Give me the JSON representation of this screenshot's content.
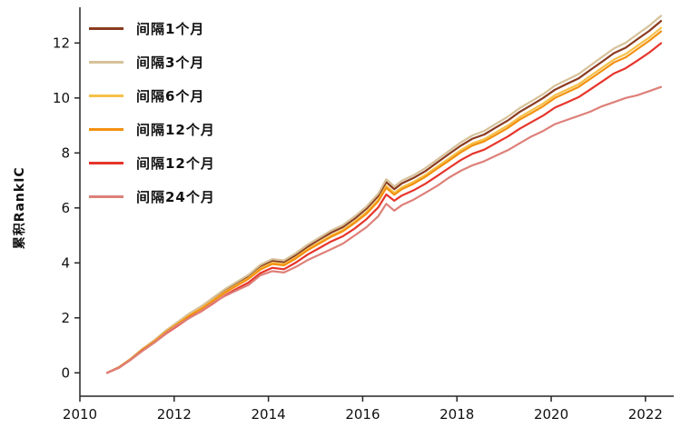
{
  "chart_data": {
    "type": "line",
    "title": "",
    "xlabel": "",
    "ylabel": "累积RankIC",
    "grid": false,
    "legend_position": "top-left",
    "xlim": [
      2010,
      2022.6
    ],
    "ylim": [
      -0.85,
      13.3
    ],
    "xticks": [
      2010,
      2012,
      2014,
      2016,
      2018,
      2020,
      2022
    ],
    "yticks": [
      0,
      2,
      4,
      6,
      8,
      10,
      12
    ],
    "x": [
      2010.58,
      2010.83,
      2011.08,
      2011.33,
      2011.58,
      2011.83,
      2012.08,
      2012.33,
      2012.58,
      2012.83,
      2013.08,
      2013.33,
      2013.58,
      2013.83,
      2014.08,
      2014.33,
      2014.58,
      2014.83,
      2015.08,
      2015.33,
      2015.58,
      2015.83,
      2016.08,
      2016.33,
      2016.5,
      2016.67,
      2016.83,
      2017.08,
      2017.33,
      2017.58,
      2017.83,
      2018.08,
      2018.33,
      2018.58,
      2018.83,
      2019.08,
      2019.33,
      2019.58,
      2019.83,
      2020.08,
      2020.33,
      2020.58,
      2020.83,
      2021.08,
      2021.33,
      2021.58,
      2021.83,
      2022.08,
      2022.33
    ],
    "series": [
      {
        "name": "间隔1个月",
        "color": "#8a3b20",
        "values": [
          0.0,
          0.2,
          0.51,
          0.87,
          1.17,
          1.53,
          1.84,
          2.14,
          2.4,
          2.7,
          3.01,
          3.26,
          3.52,
          3.88,
          4.08,
          4.03,
          4.28,
          4.59,
          4.85,
          5.1,
          5.3,
          5.61,
          5.97,
          6.43,
          6.94,
          6.68,
          6.89,
          7.09,
          7.34,
          7.65,
          7.96,
          8.26,
          8.52,
          8.67,
          8.93,
          9.18,
          9.49,
          9.74,
          10.0,
          10.3,
          10.51,
          10.71,
          11.02,
          11.32,
          11.63,
          11.83,
          12.14,
          12.44,
          12.8
        ]
      },
      {
        "name": "间隔3个月",
        "color": "#d6c29a",
        "values": [
          0.0,
          0.21,
          0.52,
          0.88,
          1.19,
          1.55,
          1.86,
          2.17,
          2.43,
          2.74,
          3.05,
          3.31,
          3.57,
          3.93,
          4.14,
          4.09,
          4.35,
          4.66,
          4.92,
          5.18,
          5.38,
          5.69,
          6.05,
          6.52,
          7.04,
          6.78,
          6.99,
          7.19,
          7.45,
          7.76,
          8.07,
          8.38,
          8.64,
          8.8,
          9.06,
          9.32,
          9.63,
          9.88,
          10.14,
          10.45,
          10.66,
          10.87,
          11.18,
          11.49,
          11.8,
          12.01,
          12.32,
          12.63,
          12.99
        ]
      },
      {
        "name": "间隔6个月",
        "color": "#f6c14a",
        "values": [
          0.0,
          0.2,
          0.5,
          0.85,
          1.15,
          1.5,
          1.8,
          2.1,
          2.35,
          2.65,
          2.95,
          3.2,
          3.45,
          3.8,
          4.0,
          3.95,
          4.2,
          4.5,
          4.75,
          5.0,
          5.2,
          5.5,
          5.85,
          6.3,
          6.8,
          6.55,
          6.75,
          6.95,
          7.2,
          7.5,
          7.8,
          8.1,
          8.35,
          8.5,
          8.75,
          9.0,
          9.3,
          9.55,
          9.8,
          10.1,
          10.3,
          10.5,
          10.8,
          11.1,
          11.4,
          11.6,
          11.9,
          12.2,
          12.55
        ]
      },
      {
        "name": "间隔12个月",
        "color": "#f29111",
        "values": [
          0.0,
          0.2,
          0.5,
          0.84,
          1.14,
          1.49,
          1.78,
          2.08,
          2.33,
          2.62,
          2.92,
          3.17,
          3.42,
          3.76,
          3.96,
          3.91,
          4.16,
          4.46,
          4.7,
          4.95,
          5.15,
          5.45,
          5.79,
          6.24,
          6.73,
          6.48,
          6.68,
          6.88,
          7.13,
          7.43,
          7.72,
          8.02,
          8.27,
          8.42,
          8.66,
          8.91,
          9.21,
          9.45,
          9.7,
          10.0,
          10.2,
          10.4,
          10.69,
          10.99,
          11.29,
          11.48,
          11.78,
          12.08,
          12.42
        ]
      },
      {
        "name": "间隔12个月",
        "color": "#e6352b",
        "values": [
          0.0,
          0.19,
          0.48,
          0.81,
          1.1,
          1.43,
          1.72,
          2.01,
          2.24,
          2.53,
          2.82,
          3.06,
          3.29,
          3.63,
          3.82,
          3.77,
          4.01,
          4.3,
          4.54,
          4.78,
          4.97,
          5.25,
          5.59,
          6.02,
          6.49,
          6.26,
          6.45,
          6.64,
          6.88,
          7.16,
          7.45,
          7.74,
          7.97,
          8.12,
          8.36,
          8.6,
          8.88,
          9.12,
          9.36,
          9.65,
          9.84,
          10.03,
          10.31,
          10.6,
          10.89,
          11.08,
          11.36,
          11.65,
          11.99
        ]
      },
      {
        "name": "间隔24个月",
        "color": "#dd8079",
        "values": [
          0.0,
          0.18,
          0.48,
          0.8,
          1.1,
          1.45,
          1.75,
          2.0,
          2.25,
          2.55,
          2.8,
          3.0,
          3.2,
          3.55,
          3.7,
          3.65,
          3.85,
          4.1,
          4.3,
          4.5,
          4.7,
          5.0,
          5.3,
          5.7,
          6.15,
          5.9,
          6.1,
          6.3,
          6.55,
          6.8,
          7.1,
          7.35,
          7.55,
          7.7,
          7.9,
          8.1,
          8.35,
          8.6,
          8.8,
          9.05,
          9.2,
          9.35,
          9.5,
          9.7,
          9.85,
          10.0,
          10.1,
          10.25,
          10.4
        ]
      }
    ]
  }
}
